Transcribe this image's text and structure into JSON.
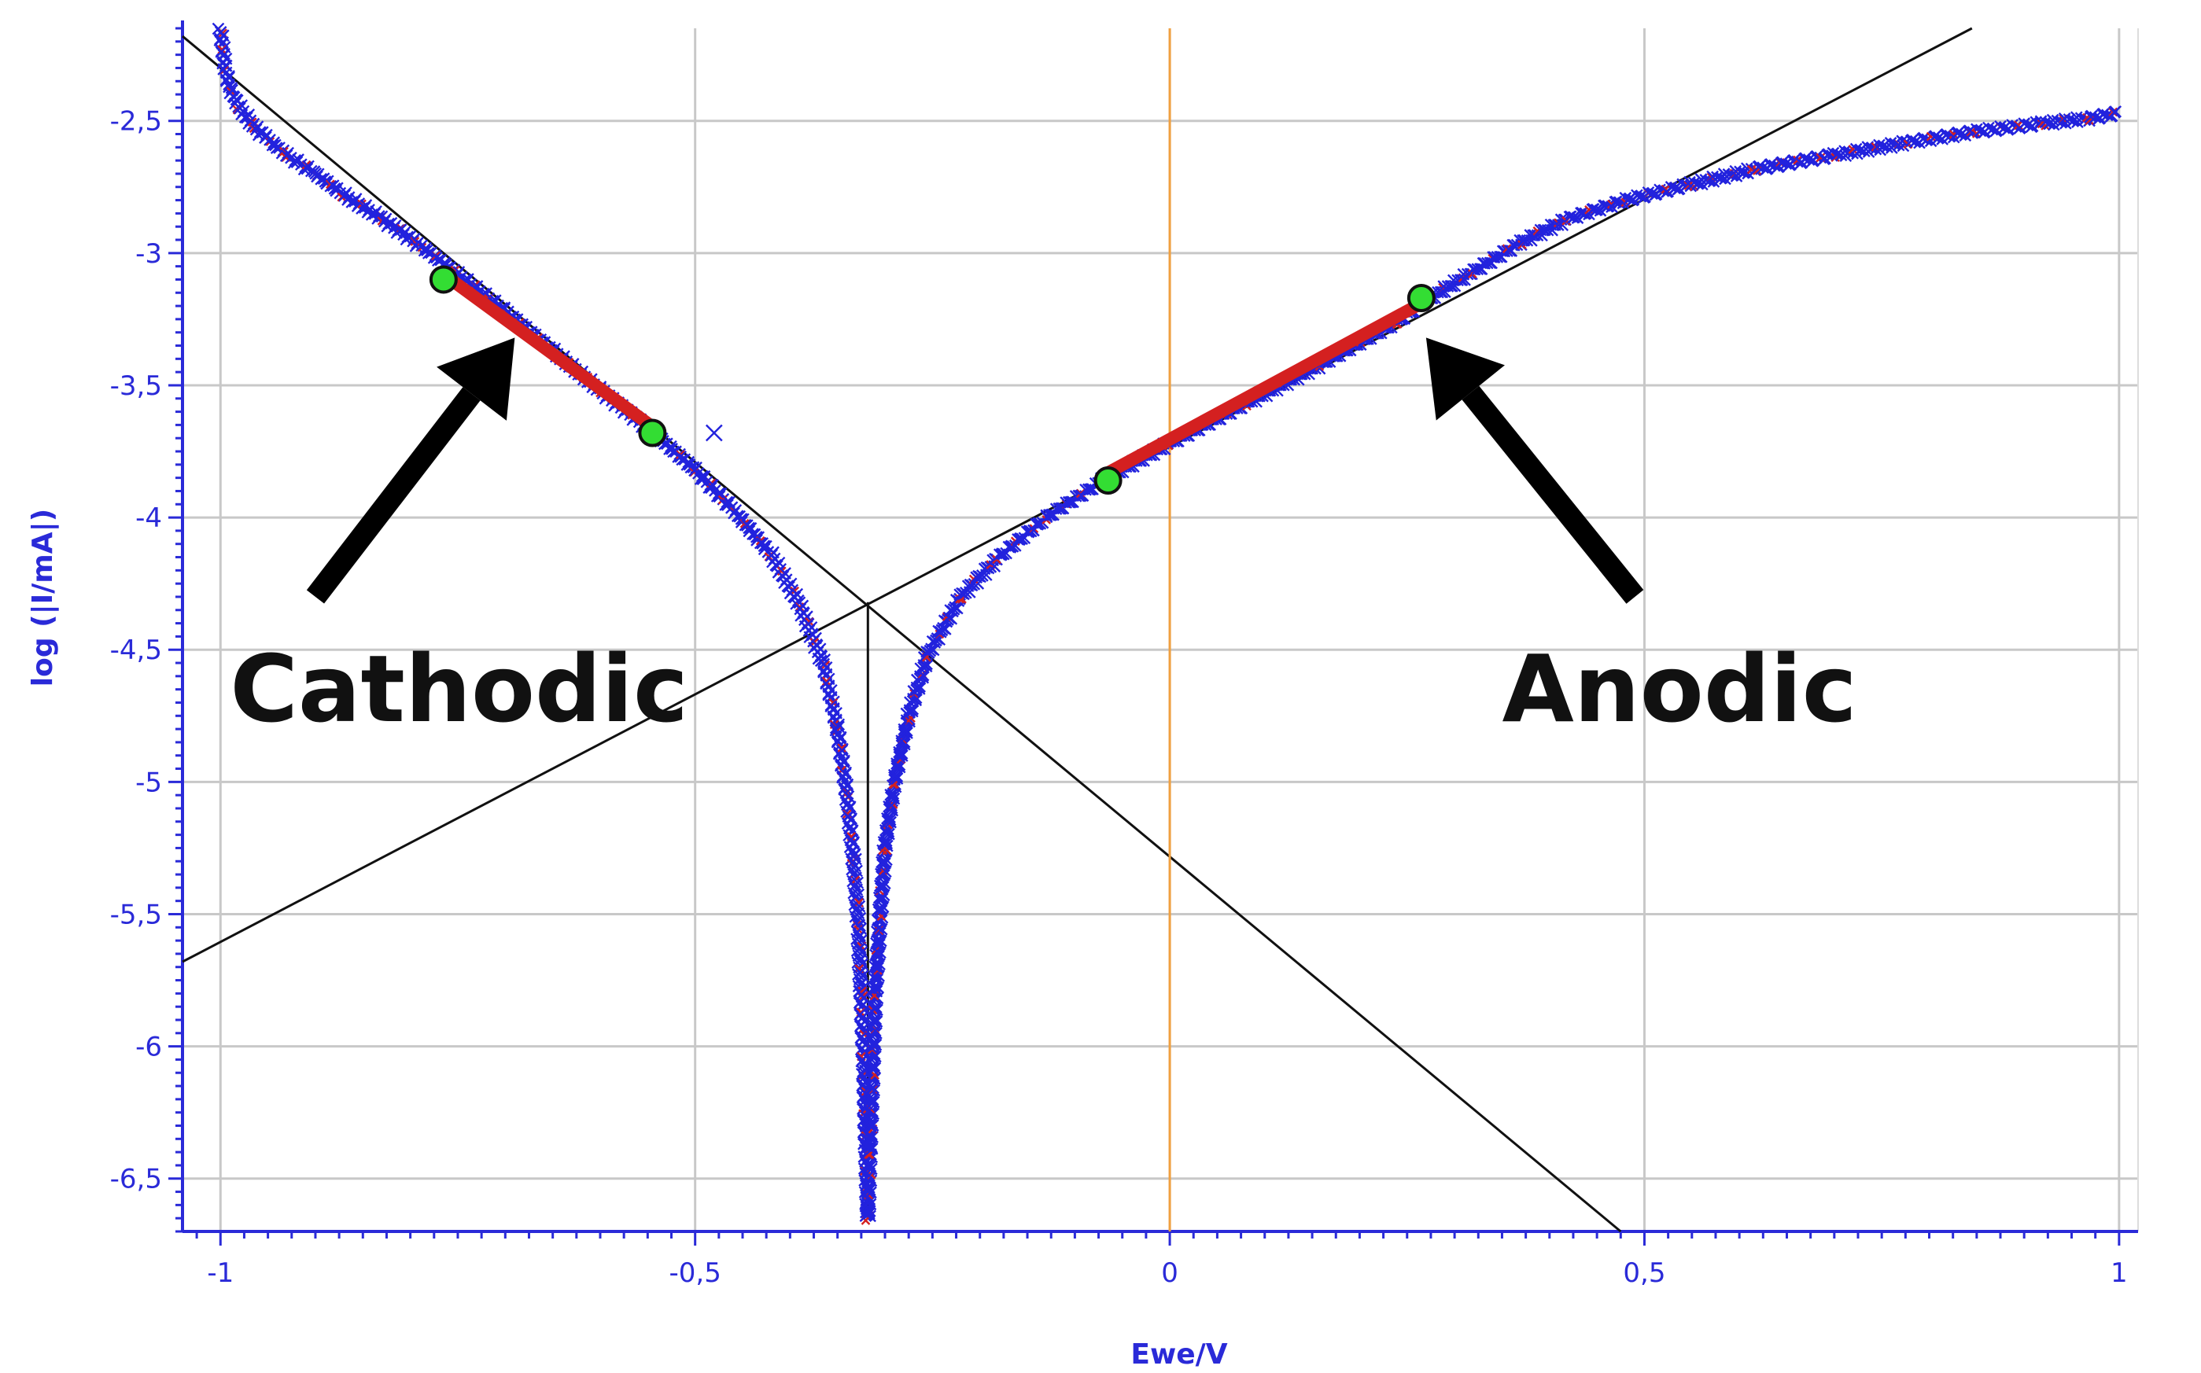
{
  "chart_data": {
    "type": "scatter",
    "title": "",
    "xlabel": "Ewe/V",
    "ylabel": "log (|I/mA|)",
    "xlim": [
      -1.04,
      1.02
    ],
    "ylim": [
      -6.7,
      -2.15
    ],
    "x_ticks": [
      -1,
      -0.5,
      0,
      0.5,
      1
    ],
    "x_tick_labels": [
      "-1",
      "-0,5",
      "0",
      "0,5",
      "1"
    ],
    "y_ticks": [
      -6.5,
      -6,
      -5.5,
      -5,
      -4.5,
      -4,
      -3.5,
      -3,
      -2.5
    ],
    "y_tick_labels": [
      "-6,5",
      "-6",
      "-5,5",
      "-5",
      "-4,5",
      "-4",
      "-3,5",
      "-3",
      "-2,5"
    ],
    "grid": true,
    "colors": {
      "data_marker": "#2222dd",
      "fit_overlay": "#d42020",
      "tafel_line": "#111111",
      "vertical_marker": "#f0a040",
      "fit_point": "#33dd33",
      "grid": "#c8c8c8",
      "axis_text": "#2a2ad8"
    },
    "series": [
      {
        "marker": "x",
        "points": [
          [
            -1.0,
            -2.16
          ],
          [
            -0.995,
            -2.3
          ],
          [
            -0.99,
            -2.38
          ],
          [
            -0.98,
            -2.45
          ],
          [
            -0.965,
            -2.52
          ],
          [
            -0.95,
            -2.57
          ],
          [
            -0.93,
            -2.63
          ],
          [
            -0.9,
            -2.7
          ],
          [
            -0.87,
            -2.78
          ],
          [
            -0.83,
            -2.87
          ],
          [
            -0.79,
            -2.97
          ],
          [
            -0.75,
            -3.08
          ],
          [
            -0.7,
            -3.22
          ],
          [
            -0.65,
            -3.37
          ],
          [
            -0.6,
            -3.52
          ],
          [
            -0.55,
            -3.66
          ],
          [
            -0.5,
            -3.82
          ],
          [
            -0.46,
            -3.97
          ],
          [
            -0.42,
            -4.14
          ],
          [
            -0.39,
            -4.33
          ],
          [
            -0.365,
            -4.55
          ],
          [
            -0.35,
            -4.8
          ],
          [
            -0.34,
            -5.05
          ],
          [
            -0.333,
            -5.3
          ],
          [
            -0.328,
            -5.55
          ],
          [
            -0.325,
            -5.8
          ],
          [
            -0.322,
            -6.1
          ],
          [
            -0.32,
            -6.4
          ],
          [
            -0.318,
            -6.65
          ],
          [
            -0.316,
            -6.4
          ],
          [
            -0.313,
            -6.1
          ],
          [
            -0.31,
            -5.8
          ],
          [
            -0.305,
            -5.5
          ],
          [
            -0.3,
            -5.25
          ],
          [
            -0.29,
            -5.0
          ],
          [
            -0.275,
            -4.75
          ],
          [
            -0.255,
            -4.52
          ],
          [
            -0.22,
            -4.3
          ],
          [
            -0.18,
            -4.15
          ],
          [
            -0.13,
            -4.0
          ],
          [
            -0.07,
            -3.86
          ],
          [
            0.0,
            -3.72
          ],
          [
            0.08,
            -3.57
          ],
          [
            0.16,
            -3.42
          ],
          [
            0.24,
            -3.26
          ],
          [
            0.27,
            -3.18
          ],
          [
            0.32,
            -3.07
          ],
          [
            0.37,
            -2.96
          ],
          [
            0.42,
            -2.87
          ],
          [
            0.48,
            -2.8
          ],
          [
            0.55,
            -2.74
          ],
          [
            0.62,
            -2.68
          ],
          [
            0.7,
            -2.63
          ],
          [
            0.78,
            -2.58
          ],
          [
            0.85,
            -2.54
          ],
          [
            0.92,
            -2.51
          ],
          [
            0.97,
            -2.49
          ],
          [
            1.0,
            -2.47
          ]
        ],
        "outliers": [
          [
            -0.48,
            -3.68
          ]
        ]
      }
    ],
    "fit_segments": [
      {
        "from": [
          -0.765,
          -3.08
        ],
        "to": [
          -0.54,
          -3.67
        ]
      },
      {
        "from": [
          -0.07,
          -3.84
        ],
        "to": [
          0.265,
          -3.19
        ]
      }
    ],
    "tafel_lines": [
      {
        "from": [
          -1.04,
          -2.18
        ],
        "to": [
          0.475,
          -6.7
        ]
      },
      {
        "from": [
          -1.04,
          -5.68
        ],
        "to": [
          0.845,
          -2.15
        ]
      }
    ],
    "vertical_markers": [
      {
        "x": 0.0,
        "y_range": [
          -6.7,
          -2.15
        ]
      },
      {
        "x": -0.318,
        "y_range": [
          -6.65,
          -4.32
        ]
      }
    ],
    "fit_points": [
      [
        -0.765,
        -3.1
      ],
      [
        -0.545,
        -3.68
      ],
      [
        -0.065,
        -3.86
      ],
      [
        0.265,
        -3.17
      ]
    ],
    "annotations": [
      {
        "text": "Cathodic",
        "x": -0.99,
        "y": -4.77,
        "arrow_from": [
          -0.9,
          -4.3
        ],
        "arrow_to": [
          -0.69,
          -3.32
        ]
      },
      {
        "text": "Anodic",
        "x": 0.35,
        "y": -4.77,
        "arrow_from": [
          0.49,
          -4.3
        ],
        "arrow_to": [
          0.27,
          -3.32
        ]
      }
    ]
  }
}
